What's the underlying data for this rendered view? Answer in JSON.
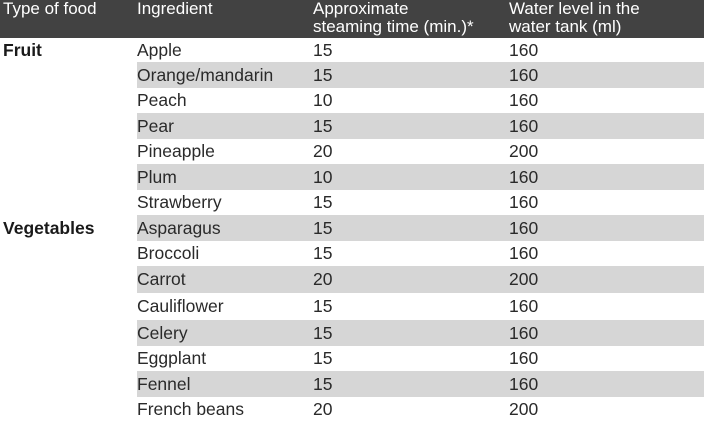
{
  "headers": {
    "type": [
      "Type of food"
    ],
    "ingredient": [
      "Ingredient"
    ],
    "time": [
      "Approximate",
      "steaming time (min.)*"
    ],
    "water": [
      "Water level in the",
      "water tank (ml)"
    ]
  },
  "rows": [
    {
      "type": "Fruit",
      "ingredient": "Apple",
      "time": "15",
      "water": "160",
      "shaded": false
    },
    {
      "type": "",
      "ingredient": "Orange/mandarin",
      "time": "15",
      "water": "160",
      "shaded": true
    },
    {
      "type": "",
      "ingredient": "Peach",
      "time": "10",
      "water": "160",
      "shaded": false
    },
    {
      "type": "",
      "ingredient": "Pear",
      "time": "15",
      "water": "160",
      "shaded": true
    },
    {
      "type": "",
      "ingredient": "Pineapple",
      "time": "20",
      "water": "200",
      "shaded": false
    },
    {
      "type": "",
      "ingredient": "Plum",
      "time": "10",
      "water": "160",
      "shaded": true
    },
    {
      "type": "",
      "ingredient": "Strawberry",
      "time": "15",
      "water": "160",
      "shaded": false
    },
    {
      "type": "Vegetables",
      "ingredient": "Asparagus",
      "time": "15",
      "water": "160",
      "shaded": true
    },
    {
      "type": "",
      "ingredient": "Broccoli",
      "time": "15",
      "water": "160",
      "shaded": false
    },
    {
      "type": "",
      "ingredient": "Carrot",
      "time": "20",
      "water": "200",
      "shaded": true
    },
    {
      "type": "",
      "ingredient": "Cauliflower",
      "time": "15",
      "water": "160",
      "shaded": false
    },
    {
      "type": "",
      "ingredient": "Celery",
      "time": "15",
      "water": "160",
      "shaded": true
    },
    {
      "type": "",
      "ingredient": "Eggplant",
      "time": "15",
      "water": "160",
      "shaded": false
    },
    {
      "type": "",
      "ingredient": "Fennel",
      "time": "15",
      "water": "160",
      "shaded": true
    },
    {
      "type": "",
      "ingredient": "French beans",
      "time": "20",
      "water": "200",
      "shaded": false
    }
  ]
}
